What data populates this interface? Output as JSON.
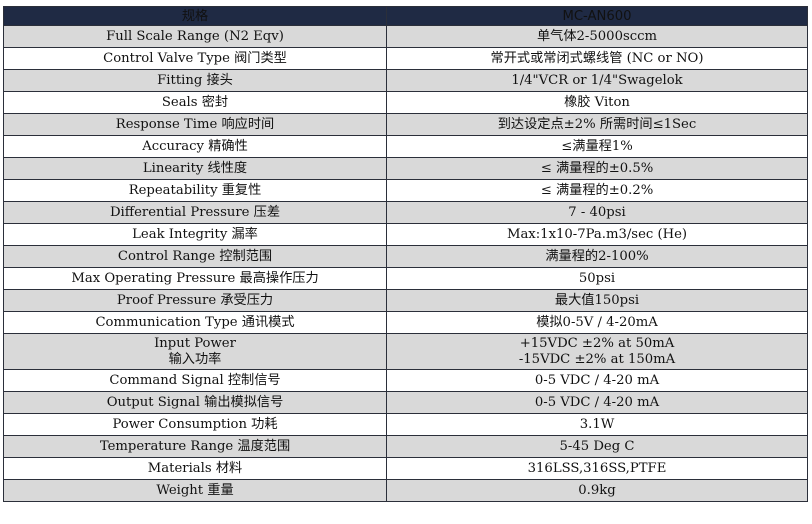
{
  "header": {
    "col1": "规格",
    "col2": "MC-AN600"
  },
  "rows": [
    {
      "label": "Full Scale Range (N2 Eqv)",
      "value": "单气体2-5000sccm"
    },
    {
      "label": "Control Valve Type 阀门类型",
      "value": "常开式或常闭式螺线管 (NC or NO)"
    },
    {
      "label": "Fitting 接头",
      "value": "1/4\"VCR or 1/4\"Swagelok"
    },
    {
      "label": "Seals 密封",
      "value": "橡胶 Viton"
    },
    {
      "label": "Response Time 响应时间",
      "value": "到达设定点±2% 所需时间≤1Sec"
    },
    {
      "label": "Accuracy 精确性",
      "value": "≤满量程1%"
    },
    {
      "label": "Linearity 线性度",
      "value": "≤ 满量程的±0.5%"
    },
    {
      "label": "Repeatability 重复性",
      "value": "≤ 满量程的±0.2%"
    },
    {
      "label": "Differential Pressure 压差",
      "value": "7 - 40psi"
    },
    {
      "label": "Leak Integrity 漏率",
      "value": "Max:1x10-7Pa.m3/sec (He)"
    },
    {
      "label": "Control Range 控制范围",
      "value": "满量程的2-100%"
    },
    {
      "label": "Max Operating Pressure 最高操作压力",
      "value": "50psi"
    },
    {
      "label": "Proof Pressure 承受压力",
      "value": "最大值150psi"
    },
    {
      "label": "Communication Type 通讯模式",
      "value": "模拟0-5V / 4-20mA"
    },
    {
      "label_line1": "Input Power",
      "label_line2": "输入功率",
      "value_line1": "+15VDC ±2% at 50mA",
      "value_line2": "-15VDC ±2% at 150mA"
    },
    {
      "label": "Command Signal 控制信号",
      "value": "0-5 VDC / 4-20 mA"
    },
    {
      "label": "Output Signal 输出模拟信号",
      "value": "0-5 VDC / 4-20 mA"
    },
    {
      "label": "Power Consumption 功耗",
      "value": "3.1W"
    },
    {
      "label": "Temperature Range 温度范围",
      "value": "5-45 Deg C"
    },
    {
      "label": "Materials 材料",
      "value": "316LSS,316SS,PTFE"
    },
    {
      "label": "Weight 重量",
      "value": "0.9kg"
    }
  ]
}
